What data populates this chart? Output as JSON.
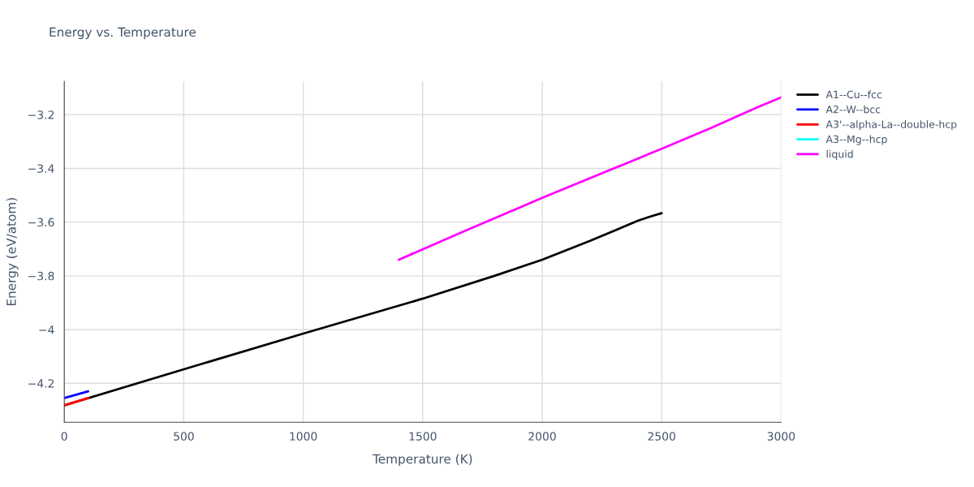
{
  "chart_data": {
    "type": "line",
    "title": "Energy vs. Temperature",
    "xlabel": "Temperature (K)",
    "ylabel": "Energy (eV/atom)",
    "xlim": [
      0,
      3000
    ],
    "xticks": [
      0,
      500,
      1000,
      1500,
      2000,
      2500,
      3000
    ],
    "ylim": [
      -4.345,
      -3.076
    ],
    "yticks": [
      {
        "value": -4.2,
        "label": "−4.2"
      },
      {
        "value": -4,
        "label": "−4"
      },
      {
        "value": -3.8,
        "label": "−3.8"
      },
      {
        "value": -3.6,
        "label": "−3.6"
      },
      {
        "value": -3.4,
        "label": "−3.4"
      },
      {
        "value": -3.2,
        "label": "−3.2"
      }
    ],
    "grid": true,
    "legend": "top right",
    "series": [
      {
        "name": "A1--Cu--fcc",
        "color": "#000000",
        "x": [
          0,
          500,
          1000,
          1500,
          1800,
          2000,
          2200,
          2400,
          2450,
          2500
        ],
        "values": [
          -4.282,
          -4.148,
          -4.015,
          -3.885,
          -3.8,
          -3.74,
          -3.67,
          -3.595,
          -3.58,
          -3.567
        ]
      },
      {
        "name": "A2--W--bcc",
        "color": "#0000ff",
        "x": [
          0,
          100
        ],
        "values": [
          -4.255,
          -4.23
        ]
      },
      {
        "name": "A3'--alpha-La--double-hcp",
        "color": "#ff0000",
        "x": [
          0,
          100
        ],
        "values": [
          -4.282,
          -4.255
        ]
      },
      {
        "name": "A3--Mg--hcp",
        "color": "#00ffff"
      },
      {
        "name": "liquid",
        "color": "#ff00ff",
        "x": [
          1400,
          1700,
          2000,
          2500,
          2700,
          2900,
          3000
        ],
        "values": [
          -3.74,
          -3.624,
          -3.51,
          -3.327,
          -3.252,
          -3.173,
          -3.136
        ]
      }
    ]
  }
}
